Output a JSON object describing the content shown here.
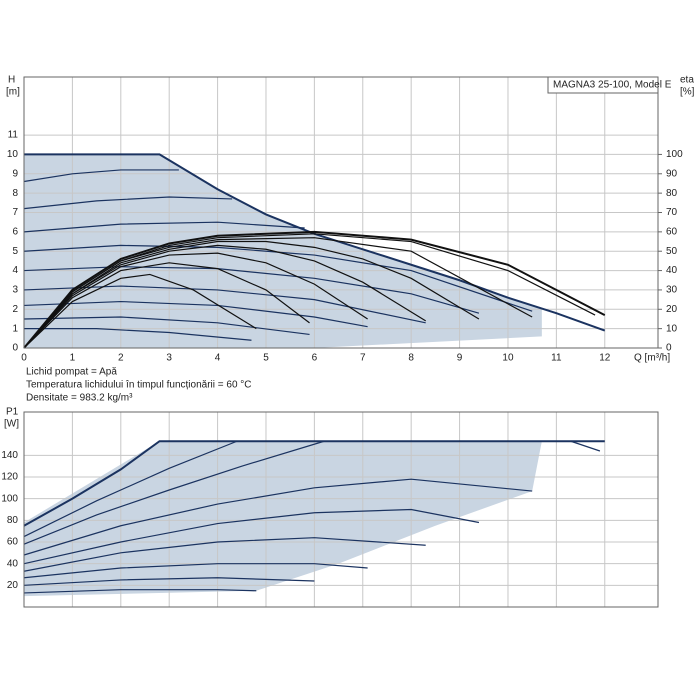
{
  "chart_data": [
    {
      "type": "line",
      "title": "MAGNA3 25-100, Model E",
      "xlabel": "Q [m³/h]",
      "ylabel": "H",
      "yunit": "[m]",
      "y2label": "eta",
      "y2unit": "[%]",
      "notes": [
        "Lichid pompat = Apă",
        "Temperatura lichidului în timpul funcționării = 60 °C",
        "Densitate = 983.2 kg/m³"
      ],
      "xlim": [
        0,
        13.1
      ],
      "xticks": [
        0,
        1,
        2,
        3,
        4,
        5,
        6,
        7,
        8,
        9,
        10,
        11,
        12
      ],
      "ylim": [
        0,
        14
      ],
      "yticks": [
        0,
        1,
        2,
        3,
        4,
        5,
        6,
        7,
        8,
        9,
        10,
        11
      ],
      "y2lim": [
        0,
        140
      ],
      "y2ticks": [
        0,
        10,
        20,
        30,
        40,
        50,
        60,
        70,
        80,
        90,
        100
      ],
      "grid": true,
      "show_xtick_labels": true,
      "region": {
        "color": "#c9d5e2",
        "x": [
          0,
          0,
          2.8,
          4,
          5,
          6,
          7,
          8,
          9,
          10,
          10.7,
          10.7,
          6,
          0
        ],
        "values": [
          0,
          10,
          10,
          8.2,
          6.9,
          5.9,
          5.1,
          4.3,
          3.5,
          2.6,
          2.0,
          0.6,
          0,
          0
        ]
      },
      "series": [
        {
          "color": "#1b3360",
          "line_width": 2,
          "x": [
            0,
            2.8,
            4,
            5,
            6,
            7,
            8,
            9,
            10,
            11,
            12
          ],
          "values": [
            10,
            10,
            8.2,
            6.9,
            5.9,
            5.1,
            4.3,
            3.5,
            2.6,
            1.8,
            0.9
          ]
        },
        {
          "color": "#1b3360",
          "x": [
            0,
            1,
            2,
            3.2
          ],
          "values": [
            8.6,
            9.0,
            9.2,
            9.2
          ]
        },
        {
          "color": "#1b3360",
          "x": [
            0,
            1.5,
            3,
            4.3
          ],
          "values": [
            7.2,
            7.6,
            7.8,
            7.7
          ]
        },
        {
          "color": "#1b3360",
          "x": [
            0,
            2,
            4,
            5.8
          ],
          "values": [
            6.0,
            6.4,
            6.5,
            6.2
          ]
        },
        {
          "color": "#1b3360",
          "x": [
            0,
            2,
            4,
            6,
            8,
            10.5
          ],
          "values": [
            5.0,
            5.3,
            5.2,
            4.8,
            4.0,
            1.9
          ]
        },
        {
          "color": "#1b3360",
          "x": [
            0,
            2,
            4,
            6,
            8,
            9.4
          ],
          "values": [
            4.0,
            4.2,
            4.1,
            3.6,
            2.8,
            1.8
          ]
        },
        {
          "color": "#1b3360",
          "x": [
            0,
            2,
            4,
            6,
            8.3
          ],
          "values": [
            3.0,
            3.2,
            3.0,
            2.5,
            1.3
          ]
        },
        {
          "color": "#1b3360",
          "x": [
            0,
            2,
            4,
            6,
            7.1
          ],
          "values": [
            2.2,
            2.4,
            2.2,
            1.6,
            1.1
          ]
        },
        {
          "color": "#1b3360",
          "x": [
            0,
            2,
            4,
            5.9
          ],
          "values": [
            1.5,
            1.6,
            1.3,
            0.7
          ]
        },
        {
          "color": "#1b3360",
          "x": [
            0,
            1.5,
            3,
            4.7
          ],
          "values": [
            1.0,
            1.0,
            0.8,
            0.4
          ]
        },
        {
          "color": "#111111",
          "axis": "y2",
          "x": [
            0,
            1,
            2,
            2.6,
            3.5,
            4.8
          ],
          "values": [
            0,
            24,
            36,
            38,
            30,
            10
          ]
        },
        {
          "color": "#111111",
          "axis": "y2",
          "x": [
            0,
            1,
            2,
            3,
            4,
            5,
            5.9
          ],
          "values": [
            0,
            26,
            40,
            44,
            41,
            30,
            13
          ]
        },
        {
          "color": "#111111",
          "axis": "y2",
          "x": [
            0,
            1,
            2,
            3,
            4,
            5,
            6,
            7.1
          ],
          "values": [
            0,
            27,
            42,
            48,
            49,
            44,
            33,
            15
          ]
        },
        {
          "color": "#111111",
          "axis": "y2",
          "x": [
            0,
            1,
            2,
            3,
            4,
            5,
            6,
            7,
            8.3
          ],
          "values": [
            0,
            28,
            43,
            50,
            53,
            51,
            45,
            34,
            14
          ]
        },
        {
          "color": "#111111",
          "axis": "y2",
          "x": [
            0,
            1,
            2,
            3,
            4,
            5,
            6,
            7,
            8,
            9.4
          ],
          "values": [
            0,
            28,
            44,
            51,
            55,
            55,
            52,
            46,
            36,
            15
          ]
        },
        {
          "color": "#111111",
          "axis": "y2",
          "x": [
            0,
            1,
            2,
            3,
            4,
            6,
            8,
            10.5
          ],
          "values": [
            0,
            29,
            45,
            52,
            56,
            57,
            50,
            16
          ]
        },
        {
          "color": "#111111",
          "axis": "y2",
          "x": [
            0,
            1,
            2,
            3,
            4,
            6,
            8,
            10,
            11.8
          ],
          "values": [
            0,
            29,
            45,
            53,
            57,
            59,
            55,
            40,
            17
          ]
        },
        {
          "color": "#111111",
          "axis": "y2",
          "line_width": 2,
          "x": [
            0,
            1,
            2,
            3,
            4,
            6,
            8,
            10,
            12
          ],
          "values": [
            0,
            30,
            46,
            54,
            58,
            60,
            56,
            43,
            17
          ]
        }
      ]
    },
    {
      "type": "line",
      "ylabel": "P1",
      "yunit": "[W]",
      "xlim": [
        0,
        13.1
      ],
      "xticks": [
        0,
        1,
        2,
        3,
        4,
        5,
        6,
        7,
        8,
        9,
        10,
        11,
        12
      ],
      "show_xtick_labels": false,
      "ylim": [
        0,
        180
      ],
      "yticks": [
        20,
        40,
        60,
        80,
        100,
        120,
        140
      ],
      "grid": true,
      "region": {
        "color": "#c9d5e2",
        "x": [
          0,
          0,
          2.8,
          10.7,
          10.5,
          8.5,
          6.5,
          4.8,
          0
        ],
        "values": [
          10,
          78,
          153,
          153,
          107,
          75,
          40,
          15,
          10
        ]
      },
      "series": [
        {
          "color": "#1b3360",
          "line_width": 2,
          "x": [
            0,
            1,
            2,
            2.8,
            12
          ],
          "values": [
            75,
            100,
            127,
            153,
            153
          ]
        },
        {
          "color": "#1b3360",
          "x": [
            11.3,
            11.9
          ],
          "values": [
            153,
            144
          ]
        },
        {
          "color": "#1b3360",
          "x": [
            0,
            1.5,
            3,
            4.4
          ],
          "values": [
            65,
            98,
            128,
            153
          ]
        },
        {
          "color": "#1b3360",
          "x": [
            0,
            1.5,
            3,
            4.5,
            6.2
          ],
          "values": [
            58,
            85,
            108,
            130,
            153
          ]
        },
        {
          "color": "#1b3360",
          "x": [
            0,
            2,
            4,
            6,
            8,
            10.5
          ],
          "values": [
            48,
            75,
            95,
            110,
            118,
            107
          ]
        },
        {
          "color": "#1b3360",
          "x": [
            0,
            2,
            4,
            6,
            8,
            9.4
          ],
          "values": [
            40,
            60,
            77,
            87,
            90,
            78
          ]
        },
        {
          "color": "#1b3360",
          "x": [
            0,
            2,
            4,
            6,
            8.3
          ],
          "values": [
            33,
            50,
            60,
            64,
            57
          ]
        },
        {
          "color": "#1b3360",
          "x": [
            0,
            2,
            4,
            6,
            7.1
          ],
          "values": [
            27,
            36,
            40,
            40,
            36
          ]
        },
        {
          "color": "#1b3360",
          "x": [
            0,
            2,
            4,
            6
          ],
          "values": [
            20,
            25,
            27,
            24
          ]
        },
        {
          "color": "#1b3360",
          "x": [
            0,
            2,
            4,
            4.8
          ],
          "values": [
            13,
            16,
            16,
            15
          ]
        }
      ]
    }
  ]
}
